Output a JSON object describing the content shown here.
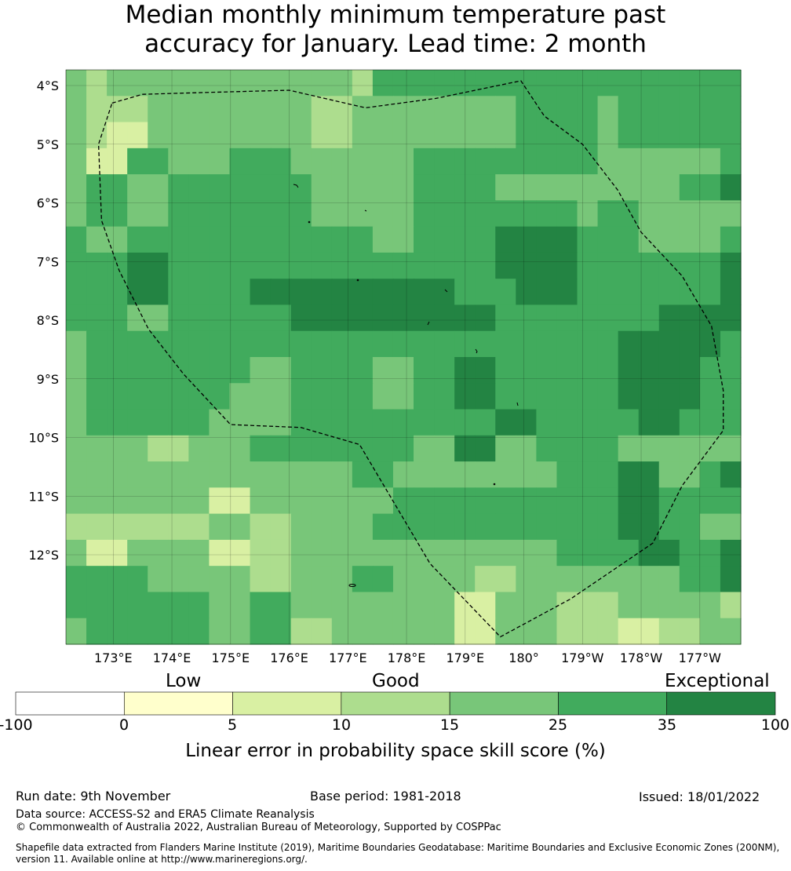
{
  "title_line1": "Median monthly minimum temperature past",
  "title_line2": "accuracy for January. Lead time: 2 month",
  "map": {
    "lat_labels": [
      "4°S",
      "5°S",
      "6°S",
      "7°S",
      "8°S",
      "9°S",
      "10°S",
      "11°S",
      "12°S"
    ],
    "lon_labels": [
      "173°E",
      "174°E",
      "175°E",
      "176°E",
      "177°E",
      "178°E",
      "179°E",
      "180°",
      "179°W",
      "178°W",
      "177°W"
    ],
    "palette": [
      "#ffffcc",
      "#d9f0a3",
      "#addd8e",
      "#78c679",
      "#41ab5d",
      "#238443"
    ],
    "grid_levels": [
      [
        3,
        2,
        3,
        3,
        3,
        3,
        3,
        3,
        3,
        3,
        3,
        3,
        3,
        3,
        2,
        4,
        4,
        4,
        4,
        4,
        4,
        4,
        4,
        4,
        4,
        4,
        4,
        4,
        4,
        4,
        4,
        4,
        4
      ],
      [
        3,
        2,
        2,
        2,
        3,
        3,
        3,
        3,
        3,
        3,
        3,
        3,
        2,
        2,
        3,
        3,
        3,
        3,
        3,
        3,
        3,
        3,
        4,
        4,
        4,
        4,
        3,
        4,
        4,
        4,
        4,
        4,
        4
      ],
      [
        3,
        2,
        1,
        1,
        3,
        3,
        3,
        3,
        3,
        3,
        3,
        3,
        2,
        2,
        3,
        3,
        3,
        3,
        3,
        3,
        3,
        3,
        4,
        4,
        4,
        4,
        3,
        4,
        4,
        4,
        4,
        4,
        4
      ],
      [
        3,
        1,
        1,
        4,
        4,
        3,
        3,
        3,
        4,
        4,
        4,
        3,
        3,
        3,
        3,
        3,
        3,
        4,
        4,
        4,
        4,
        4,
        4,
        4,
        4,
        4,
        3,
        3,
        3,
        3,
        3,
        3,
        4
      ],
      [
        3,
        4,
        4,
        3,
        3,
        4,
        4,
        4,
        4,
        4,
        4,
        4,
        3,
        3,
        3,
        3,
        3,
        4,
        4,
        4,
        4,
        3,
        3,
        3,
        3,
        3,
        3,
        3,
        3,
        3,
        4,
        4,
        5
      ],
      [
        3,
        4,
        4,
        3,
        3,
        4,
        4,
        4,
        4,
        4,
        4,
        4,
        3,
        3,
        3,
        3,
        3,
        4,
        4,
        4,
        4,
        4,
        4,
        4,
        4,
        3,
        4,
        4,
        3,
        3,
        3,
        3,
        3
      ],
      [
        4,
        3,
        3,
        4,
        4,
        4,
        4,
        4,
        4,
        4,
        4,
        4,
        4,
        4,
        4,
        3,
        3,
        4,
        4,
        4,
        4,
        5,
        5,
        5,
        5,
        4,
        4,
        4,
        3,
        3,
        3,
        3,
        4
      ],
      [
        4,
        4,
        4,
        5,
        5,
        4,
        4,
        4,
        4,
        4,
        4,
        4,
        4,
        4,
        4,
        4,
        4,
        4,
        4,
        4,
        4,
        5,
        5,
        5,
        5,
        4,
        4,
        4,
        4,
        4,
        4,
        4,
        5
      ],
      [
        4,
        4,
        4,
        5,
        5,
        4,
        4,
        4,
        4,
        5,
        5,
        5,
        5,
        5,
        5,
        5,
        5,
        5,
        5,
        4,
        4,
        4,
        5,
        5,
        5,
        4,
        4,
        4,
        4,
        4,
        4,
        4,
        5
      ],
      [
        4,
        4,
        4,
        3,
        3,
        4,
        4,
        4,
        4,
        4,
        4,
        5,
        5,
        5,
        5,
        5,
        5,
        5,
        5,
        5,
        5,
        4,
        4,
        4,
        4,
        4,
        4,
        4,
        4,
        5,
        5,
        5,
        5
      ],
      [
        3,
        4,
        4,
        4,
        4,
        4,
        4,
        4,
        4,
        4,
        4,
        4,
        4,
        4,
        4,
        4,
        4,
        4,
        4,
        4,
        4,
        4,
        4,
        4,
        4,
        4,
        4,
        5,
        5,
        5,
        5,
        5,
        4
      ],
      [
        3,
        4,
        4,
        4,
        4,
        4,
        4,
        4,
        4,
        3,
        3,
        4,
        4,
        4,
        4,
        3,
        3,
        4,
        4,
        5,
        5,
        4,
        4,
        4,
        4,
        4,
        4,
        5,
        5,
        5,
        5,
        4,
        4
      ],
      [
        3,
        4,
        4,
        4,
        4,
        4,
        4,
        4,
        3,
        3,
        3,
        4,
        4,
        4,
        4,
        3,
        3,
        4,
        4,
        5,
        5,
        4,
        4,
        4,
        4,
        4,
        4,
        5,
        5,
        5,
        5,
        4,
        4
      ],
      [
        3,
        4,
        4,
        4,
        4,
        4,
        4,
        3,
        3,
        3,
        3,
        4,
        4,
        4,
        4,
        4,
        4,
        4,
        4,
        4,
        4,
        5,
        5,
        4,
        4,
        4,
        4,
        4,
        5,
        5,
        4,
        4,
        4
      ],
      [
        3,
        3,
        3,
        3,
        2,
        2,
        3,
        3,
        3,
        4,
        4,
        4,
        4,
        4,
        4,
        4,
        4,
        3,
        3,
        5,
        5,
        3,
        3,
        4,
        4,
        4,
        4,
        3,
        3,
        3,
        3,
        3,
        3
      ],
      [
        3,
        3,
        3,
        3,
        3,
        3,
        3,
        3,
        3,
        3,
        3,
        3,
        3,
        3,
        4,
        4,
        3,
        3,
        3,
        3,
        3,
        3,
        3,
        3,
        4,
        4,
        4,
        5,
        5,
        3,
        3,
        4,
        5
      ],
      [
        3,
        3,
        3,
        3,
        3,
        3,
        3,
        1,
        1,
        3,
        3,
        3,
        3,
        3,
        3,
        3,
        4,
        4,
        4,
        4,
        4,
        4,
        4,
        4,
        4,
        4,
        4,
        5,
        5,
        4,
        4,
        4,
        4
      ],
      [
        2,
        2,
        2,
        2,
        2,
        2,
        2,
        3,
        3,
        2,
        2,
        3,
        3,
        3,
        3,
        4,
        4,
        4,
        4,
        4,
        4,
        4,
        4,
        4,
        4,
        4,
        4,
        5,
        5,
        4,
        4,
        3,
        3
      ],
      [
        3,
        1,
        1,
        3,
        3,
        3,
        3,
        1,
        1,
        2,
        2,
        3,
        3,
        3,
        3,
        3,
        3,
        3,
        3,
        3,
        3,
        3,
        3,
        3,
        4,
        4,
        4,
        4,
        5,
        5,
        4,
        4,
        5
      ],
      [
        4,
        4,
        4,
        4,
        3,
        3,
        3,
        3,
        3,
        2,
        2,
        3,
        3,
        3,
        4,
        4,
        3,
        3,
        3,
        3,
        2,
        2,
        3,
        3,
        3,
        3,
        3,
        3,
        3,
        3,
        4,
        4,
        5
      ],
      [
        4,
        4,
        4,
        4,
        4,
        4,
        4,
        3,
        3,
        4,
        4,
        3,
        3,
        3,
        3,
        3,
        3,
        3,
        3,
        1,
        1,
        3,
        3,
        3,
        2,
        2,
        2,
        3,
        3,
        3,
        3,
        3,
        2
      ],
      [
        3,
        4,
        4,
        4,
        4,
        4,
        4,
        3,
        3,
        4,
        4,
        2,
        2,
        3,
        3,
        3,
        3,
        3,
        3,
        1,
        1,
        3,
        3,
        3,
        2,
        2,
        2,
        1,
        1,
        2,
        2,
        3,
        3
      ]
    ],
    "eez_boundary": [
      [
        172.98,
        -4.3
      ],
      [
        173.5,
        -4.15
      ],
      [
        174.5,
        -4.12
      ],
      [
        176.0,
        -4.08
      ],
      [
        177.3,
        -4.38
      ],
      [
        178.5,
        -4.22
      ],
      [
        179.95,
        -3.92
      ],
      [
        180.35,
        -4.52
      ],
      [
        181.0,
        -5.0
      ],
      [
        181.6,
        -5.78
      ],
      [
        182.0,
        -6.5
      ],
      [
        182.7,
        -7.25
      ],
      [
        183.2,
        -8.1
      ],
      [
        183.4,
        -9.2
      ],
      [
        183.4,
        -9.88
      ],
      [
        182.7,
        -10.82
      ],
      [
        182.2,
        -11.8
      ],
      [
        180.8,
        -12.75
      ],
      [
        179.6,
        -13.4
      ],
      [
        178.4,
        -12.15
      ],
      [
        177.2,
        -10.12
      ],
      [
        176.2,
        -9.83
      ],
      [
        175.0,
        -9.78
      ],
      [
        174.2,
        -8.92
      ],
      [
        173.6,
        -8.15
      ],
      [
        173.1,
        -7.15
      ],
      [
        172.8,
        -6.3
      ],
      [
        172.75,
        -5.0
      ],
      [
        172.98,
        -4.3
      ]
    ]
  },
  "colorbar": {
    "categories": [
      "Low",
      "Good",
      "Exceptional"
    ],
    "ticks": [
      "-100",
      "0",
      "5",
      "10",
      "15",
      "25",
      "35",
      "100"
    ],
    "colors": [
      "#ffffff",
      "#ffffcc",
      "#d9f0a3",
      "#addd8e",
      "#78c679",
      "#41ab5d",
      "#238443"
    ],
    "label": "Linear error in probability space skill score (%)"
  },
  "footer": {
    "run_date": "Run date: 9th November",
    "base_period": "Base period: 1981-2018",
    "issued": "Issued: 18/01/2022",
    "data_source": "Data source: ACCESS-S2 and ERA5 Climate Reanalysis",
    "copyright": "© Commonwealth of Australia 2022, Australian Bureau of Meteorology, Supported by COSPPac",
    "shapefile_line1": "Shapefile data extracted from Flanders Marine Institute (2019), Maritime Boundaries Geodatabase: Maritime Boundaries and Exclusive Economic Zones (200NM),",
    "shapefile_line2": "version 11. Available online at http://www.marineregions.org/."
  }
}
